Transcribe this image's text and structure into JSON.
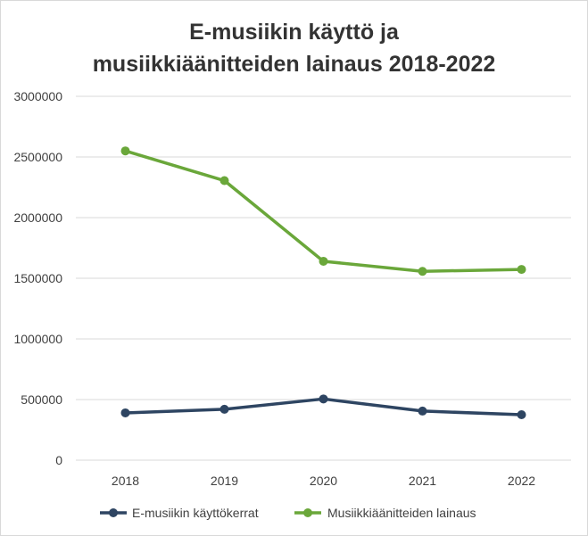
{
  "chart_data": {
    "type": "line",
    "title_line1": "E-musiikin käyttö ja",
    "title_line2": "musiikkiäänitteiden lainaus 2018-2022",
    "categories": [
      "2018",
      "2019",
      "2020",
      "2021",
      "2022"
    ],
    "ylim": [
      0,
      3000000
    ],
    "yticks": [
      0,
      500000,
      1000000,
      1500000,
      2000000,
      2500000,
      3000000
    ],
    "ytick_labels": [
      "0",
      "500000",
      "1000000",
      "1500000",
      "2000000",
      "2500000",
      "3000000"
    ],
    "grid": true,
    "legend_position": "bottom",
    "series": [
      {
        "name": "E-musiikin käyttökerrat",
        "color": "#2e4562",
        "values": [
          390000,
          420000,
          505000,
          405000,
          375000
        ]
      },
      {
        "name": "Musiikkiäänitteiden lainaus",
        "color": "#6aa73a",
        "values": [
          2550000,
          2305000,
          1640000,
          1557000,
          1573000
        ]
      }
    ]
  }
}
